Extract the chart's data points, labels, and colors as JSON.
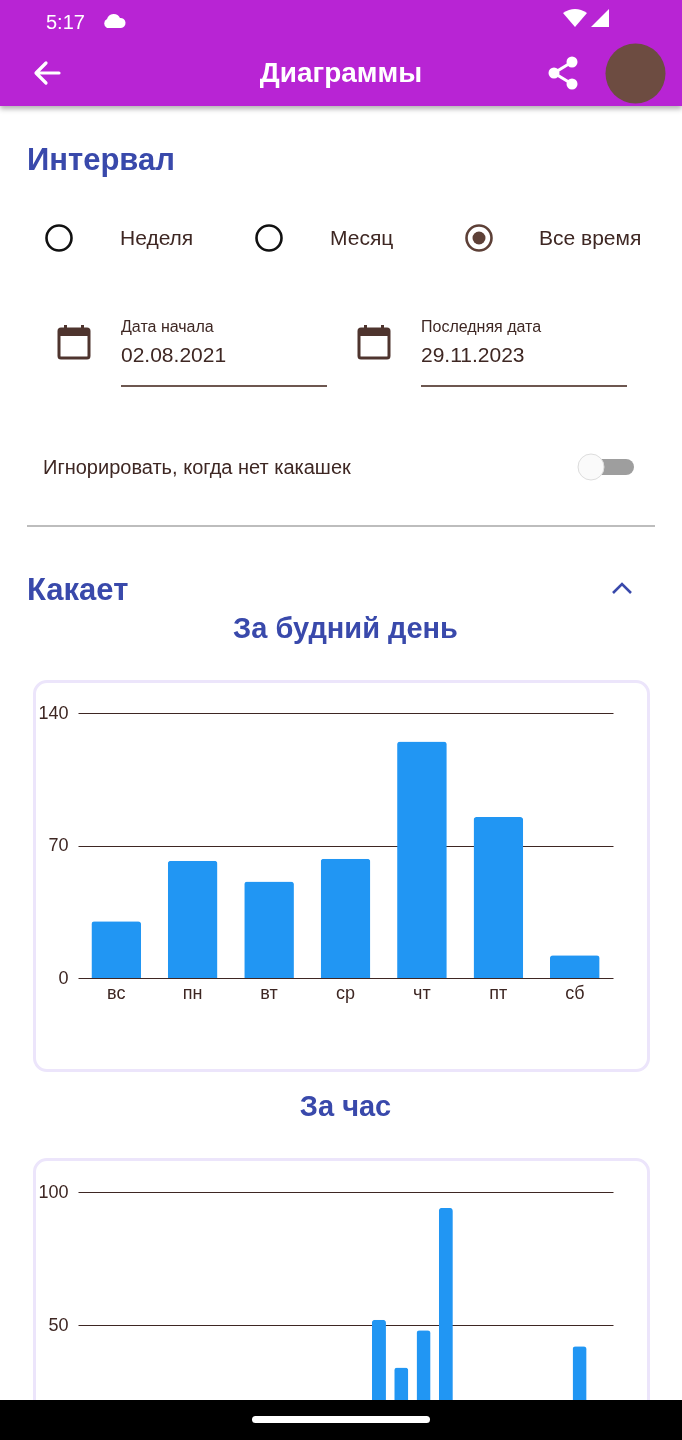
{
  "chart_data": [
    {
      "type": "other",
      "title": "Диаграммы",
      "annotations": [
        "5:17",
        "Интервал",
        "Неделя",
        "Месяц",
        "Все время",
        "Дата начала",
        "02.08.2021",
        "Последняя дата",
        "29.11.2023",
        "Игнорировать, когда нет какашек",
        "Какает"
      ]
    },
    {
      "type": "bar",
      "title": "За будний день",
      "categories": [
        "вс",
        "пн",
        "вт",
        "ср",
        "чт",
        "пт",
        "сб"
      ],
      "values": [
        30,
        62,
        51,
        63,
        125,
        85,
        12
      ],
      "color": "#2196f3",
      "ylim": [
        0,
        140
      ],
      "yticks": [
        0,
        70,
        140
      ],
      "grid": "y"
    },
    {
      "type": "bar",
      "title": "За час",
      "categories": [
        null,
        null,
        null,
        null,
        null,
        null,
        null,
        null,
        null,
        null,
        null,
        null,
        null,
        null,
        null,
        null,
        null,
        null,
        null,
        null,
        null,
        null,
        null,
        null
      ],
      "values": [
        null,
        null,
        null,
        null,
        null,
        null,
        null,
        null,
        null,
        null,
        null,
        null,
        null,
        52,
        34,
        48,
        94,
        null,
        null,
        null,
        null,
        null,
        42,
        null
      ],
      "color": "#2196f3",
      "ylim": [
        0,
        100
      ],
      "yticks": [
        50,
        100
      ],
      "grid": "y"
    }
  ]
}
